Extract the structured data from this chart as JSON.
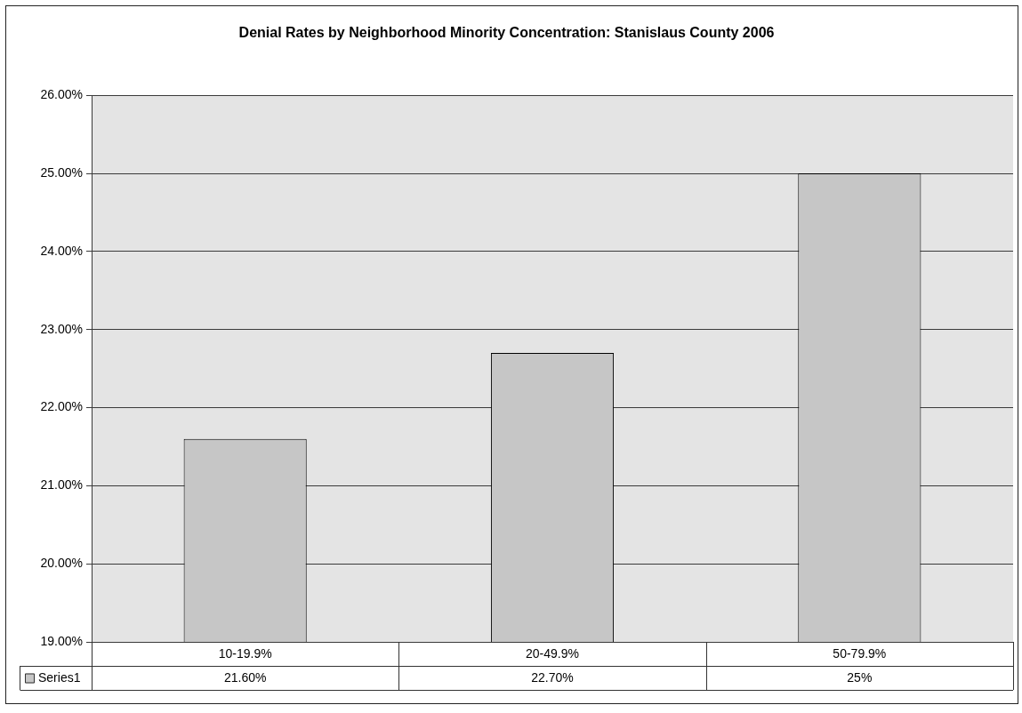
{
  "chart_data": {
    "type": "bar",
    "title": "Denial Rates by Neighborhood Minority Concentration: Stanislaus County 2006",
    "categories": [
      "10-19.9%",
      "20-49.9%",
      "50-79.9%"
    ],
    "series": [
      {
        "name": "Series1",
        "color": "#c6c6c6",
        "values": [
          21.6,
          22.7,
          25
        ],
        "value_labels": [
          "21.60%",
          "22.70%",
          "25%"
        ]
      }
    ],
    "ylim": [
      19,
      26
    ],
    "yticks": [
      {
        "value": 19,
        "label": "19.00%"
      },
      {
        "value": 20,
        "label": "20.00%"
      },
      {
        "value": 21,
        "label": "21.00%"
      },
      {
        "value": 22,
        "label": "22.00%"
      },
      {
        "value": 23,
        "label": "23.00%"
      },
      {
        "value": 24,
        "label": "24.00%"
      },
      {
        "value": 25,
        "label": "25.00%"
      },
      {
        "value": 26,
        "label": "26.00%"
      }
    ],
    "grid": "y",
    "legend": "bottom"
  }
}
